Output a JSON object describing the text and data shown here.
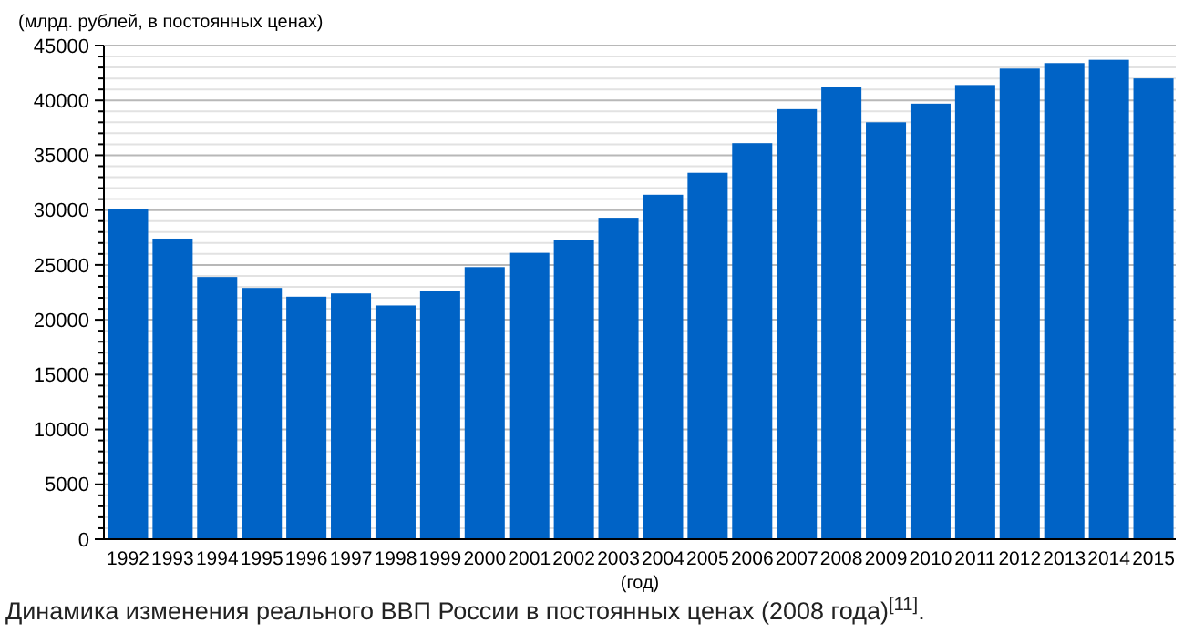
{
  "chart_data": {
    "type": "bar",
    "ylabel": "(млрд. рублей, в постоянных ценах)",
    "xlabel": "(год)",
    "categories": [
      "1992",
      "1993",
      "1994",
      "1995",
      "1996",
      "1997",
      "1998",
      "1999",
      "2000",
      "2001",
      "2002",
      "2003",
      "2004",
      "2005",
      "2006",
      "2007",
      "2008",
      "2009",
      "2010",
      "2011",
      "2012",
      "2013",
      "2014",
      "2015"
    ],
    "values": [
      30100,
      27400,
      23900,
      22900,
      22100,
      22400,
      21300,
      22600,
      24800,
      26100,
      27300,
      29300,
      31400,
      33400,
      36100,
      39200,
      41200,
      38000,
      39700,
      41400,
      42900,
      43400,
      43700,
      42000
    ],
    "color": "#0063c6",
    "ylim": [
      0,
      45000
    ],
    "yticks": [
      0,
      {
        "value": 1000,
        "label": null
      },
      {
        "value": 2000,
        "label": null
      },
      {
        "value": 3000,
        "label": null
      },
      {
        "value": 4000,
        "label": null
      },
      5000,
      {
        "value": 6000,
        "label": null
      },
      {
        "value": 7000,
        "label": null
      },
      {
        "value": 8000,
        "label": null
      },
      {
        "value": 9000,
        "label": null
      },
      10000,
      {
        "value": 11000,
        "label": null
      },
      {
        "value": 12000,
        "label": null
      },
      {
        "value": 13000,
        "label": null
      },
      {
        "value": 14000,
        "label": null
      },
      15000,
      {
        "value": 16000,
        "label": null
      },
      {
        "value": 17000,
        "label": null
      },
      {
        "value": 18000,
        "label": null
      },
      {
        "value": 19000,
        "label": null
      },
      20000,
      {
        "value": 21000,
        "label": null
      },
      {
        "value": 22000,
        "label": null
      },
      {
        "value": 23000,
        "label": null
      },
      {
        "value": 24000,
        "label": null
      },
      25000,
      {
        "value": 26000,
        "label": null
      },
      {
        "value": 27000,
        "label": null
      },
      {
        "value": 28000,
        "label": null
      },
      {
        "value": 29000,
        "label": null
      },
      30000,
      {
        "value": 31000,
        "label": null
      },
      {
        "value": 32000,
        "label": null
      },
      {
        "value": 33000,
        "label": null
      },
      {
        "value": 34000,
        "label": null
      },
      35000,
      {
        "value": 36000,
        "label": null
      },
      {
        "value": 37000,
        "label": null
      },
      {
        "value": 38000,
        "label": null
      },
      {
        "value": 39000,
        "label": null
      },
      40000,
      {
        "value": 41000,
        "label": null
      },
      {
        "value": 42000,
        "label": null
      },
      {
        "value": 43000,
        "label": null
      },
      {
        "value": 44000,
        "label": null
      },
      45000
    ],
    "grid": "y",
    "annotations": [
      "Динамика изменения реального ВВП России в постоянных ценах (2008 года)$^{[11]}$."
    ]
  }
}
